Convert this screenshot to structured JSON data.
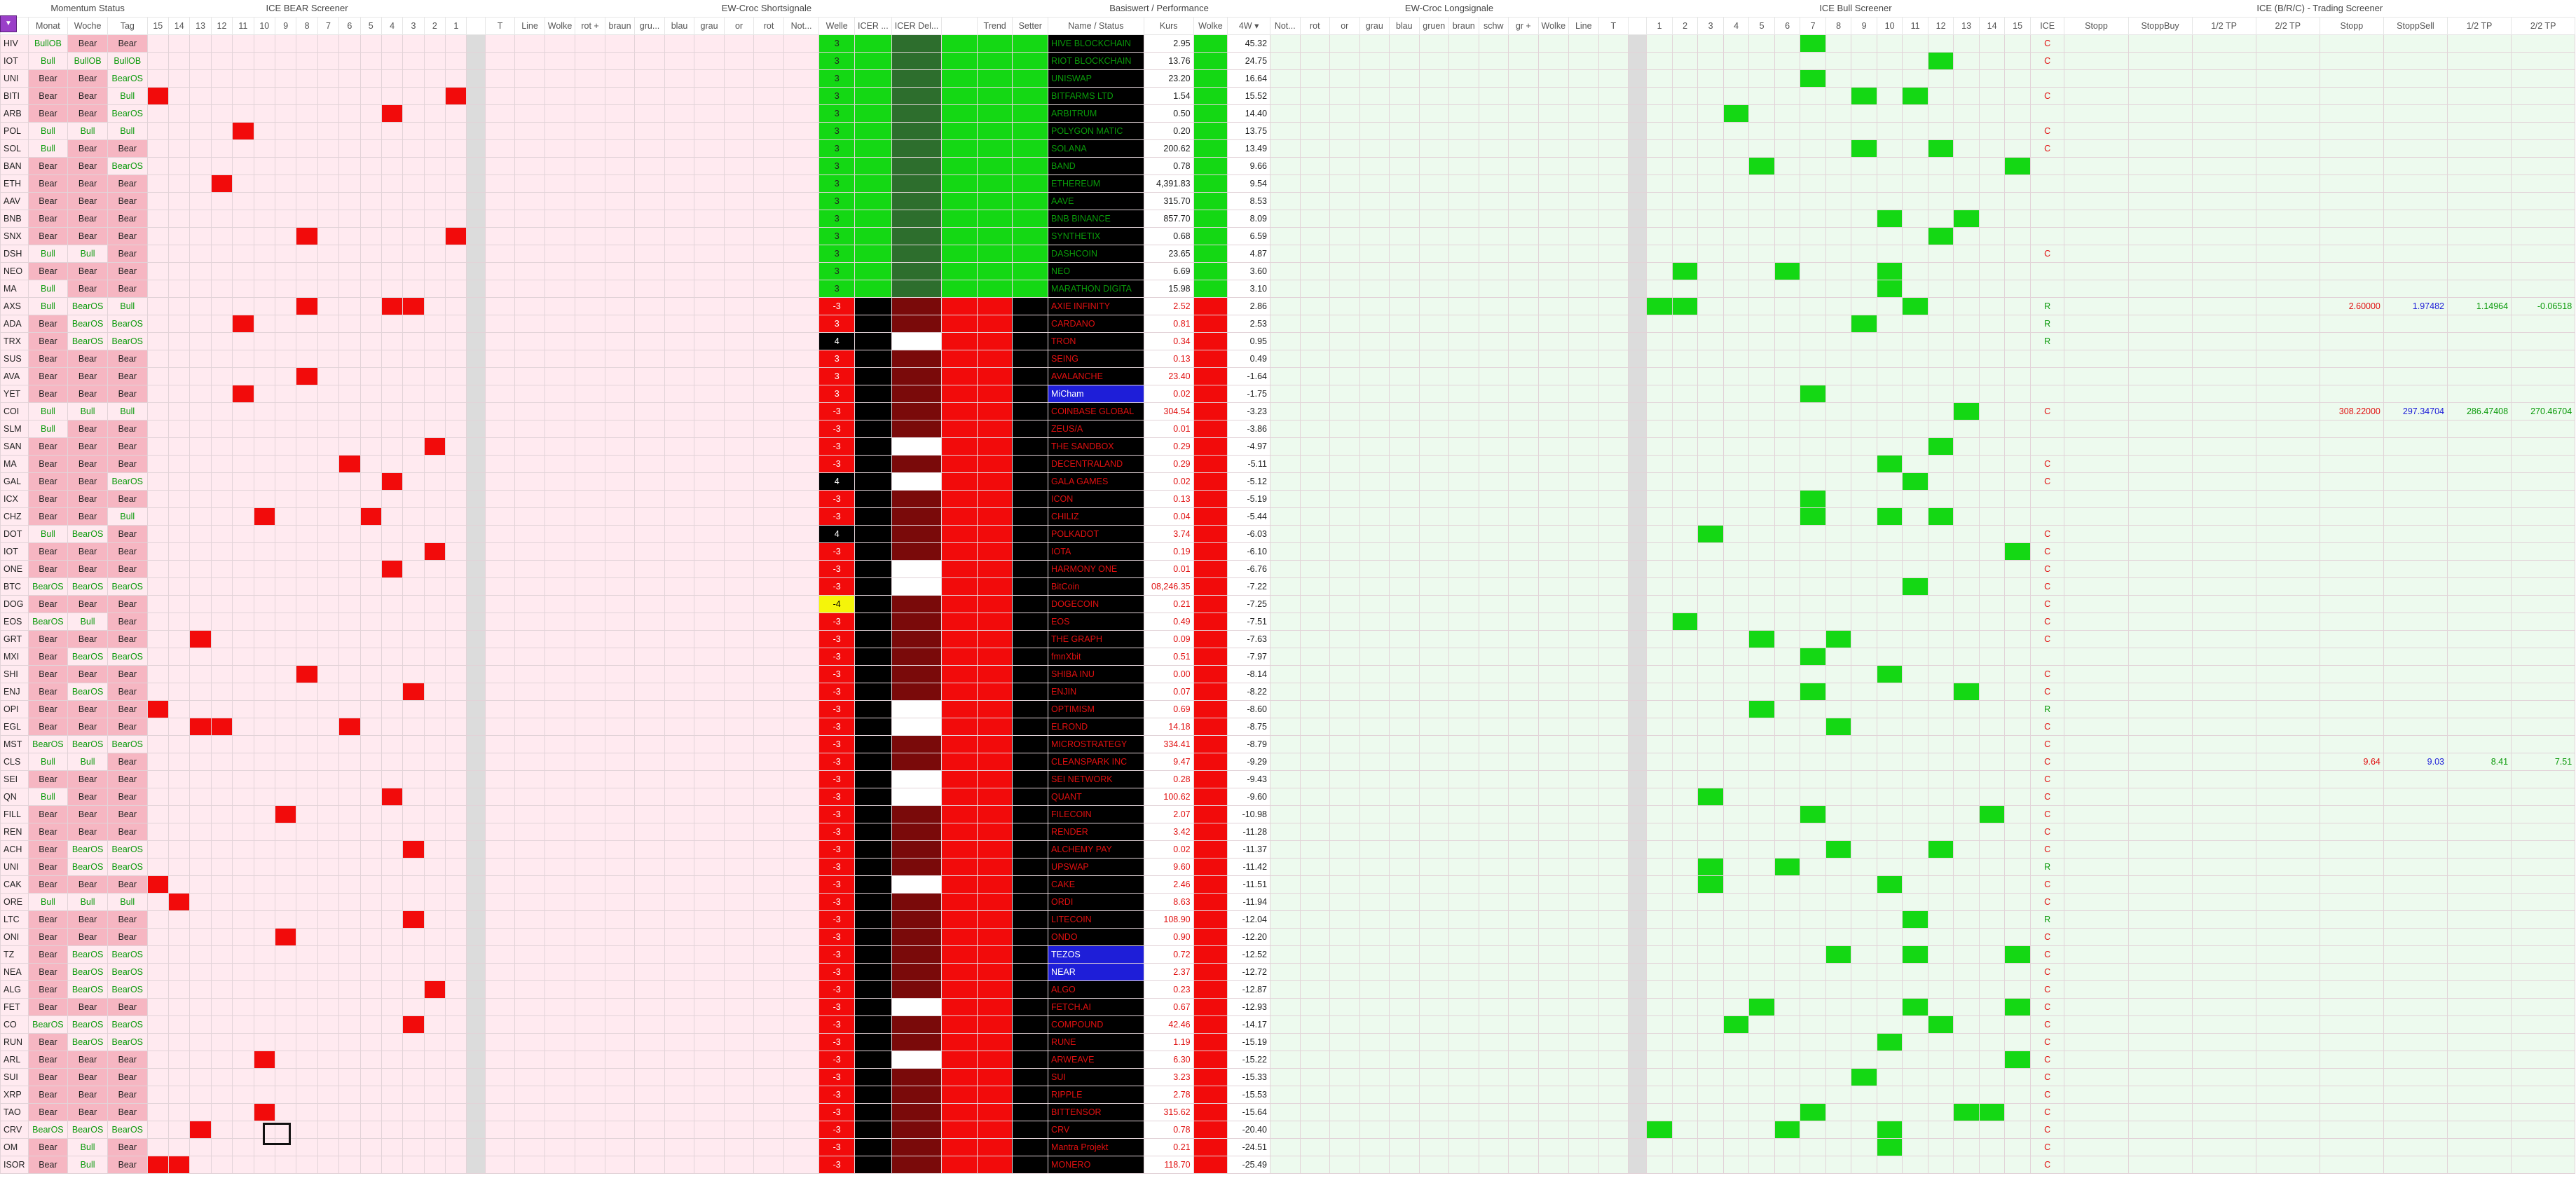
{
  "groups": {
    "momentum": "Momentum Status",
    "icebear": "ICE BEAR Screener",
    "ewshort": "EW-Croc Shortsignale",
    "basis": "Basiswert / Performance",
    "ewlong": "EW-Croc Longsignale",
    "icebull": "ICE Bull Screener",
    "trading": "ICE (B/R/C) - Trading Screener"
  },
  "corner_label": "▼",
  "headers": {
    "momentum": [
      "Monat",
      "Woche",
      "Tag"
    ],
    "icebear": [
      "15",
      "14",
      "13",
      "12",
      "11",
      "10",
      "9",
      "8",
      "7",
      "6",
      "5",
      "4",
      "3",
      "2",
      "1"
    ],
    "ewshort_a": [
      "T",
      "Line",
      "Wolke",
      "rot +",
      "braun",
      "gru...",
      "blau",
      "grau",
      "or",
      "rot"
    ],
    "ewshort_b": [
      "Not...",
      "Welle",
      "ICER ...",
      "ICER Del...",
      "",
      "Trend",
      "Setter"
    ],
    "basis": [
      "Name / Status",
      "Kurs",
      "Wolke",
      "4W ▾"
    ],
    "ewlong": [
      "Not...",
      "rot",
      "or",
      "grau",
      "blau",
      "gruen",
      "braun",
      "schw",
      "gr +",
      "Wolke",
      "Line",
      "T"
    ],
    "icebull": [
      "1",
      "2",
      "3",
      "4",
      "5",
      "6",
      "7",
      "8",
      "9",
      "10",
      "11",
      "12",
      "13",
      "14",
      "15",
      "ICE"
    ],
    "trading": [
      "Stopp",
      "StoppBuy",
      "1/2 TP",
      "2/2 TP",
      "Stopp",
      "StoppSell",
      "1/2 TP",
      "2/2 TP"
    ]
  },
  "rows": [
    {
      "t": "HIV",
      "m": [
        "BullOB",
        "Bear",
        "Bear"
      ],
      "name": "HIVE BLOCKCHAIN",
      "kurs": "2.95",
      "w4": "45.32",
      "welle": "3",
      "ice": "C"
    },
    {
      "t": "IOT",
      "m": [
        "Bull",
        "BullOB",
        "BullOB"
      ],
      "name": "RIOT BLOCKCHAIN",
      "kurs": "13.76",
      "w4": "24.75",
      "welle": "3",
      "ice": "C"
    },
    {
      "t": "UNI",
      "m": [
        "Bear",
        "Bear",
        "BearOS"
      ],
      "name": "UNISWAP",
      "kurs": "23.20",
      "w4": "16.64",
      "welle": "3",
      "ice": ""
    },
    {
      "t": "BITI",
      "m": [
        "Bear",
        "Bear",
        "Bull"
      ],
      "name": "BITFARMS LTD",
      "kurs": "1.54",
      "w4": "15.52",
      "welle": "3",
      "ice": "C"
    },
    {
      "t": "ARB",
      "m": [
        "Bear",
        "Bear",
        "BearOS"
      ],
      "name": "ARBITRUM",
      "kurs": "0.50",
      "w4": "14.40",
      "welle": "3",
      "ice": ""
    },
    {
      "t": "POL",
      "m": [
        "Bull",
        "Bull",
        "Bull"
      ],
      "name": "POLYGON MATIC",
      "kurs": "0.20",
      "w4": "13.75",
      "welle": "3",
      "ice": "C"
    },
    {
      "t": "SOL",
      "m": [
        "Bull",
        "Bear",
        "Bear"
      ],
      "name": "SOLANA",
      "kurs": "200.62",
      "w4": "13.49",
      "welle": "3",
      "ice": "C"
    },
    {
      "t": "BAN",
      "m": [
        "Bear",
        "Bear",
        "BearOS"
      ],
      "name": "BAND",
      "kurs": "0.78",
      "w4": "9.66",
      "welle": "3",
      "ice": ""
    },
    {
      "t": "ETH",
      "m": [
        "Bear",
        "Bear",
        "Bear"
      ],
      "name": "ETHEREUM",
      "kurs": "4,391.83",
      "w4": "9.54",
      "welle": "3",
      "ice": ""
    },
    {
      "t": "AAV",
      "m": [
        "Bear",
        "Bear",
        "Bear"
      ],
      "name": "AAVE",
      "kurs": "315.70",
      "w4": "8.53",
      "welle": "3",
      "ice": ""
    },
    {
      "t": "BNB",
      "m": [
        "Bear",
        "Bear",
        "Bear"
      ],
      "name": "BNB BINANCE",
      "kurs": "857.70",
      "w4": "8.09",
      "welle": "3",
      "ice": ""
    },
    {
      "t": "SNX",
      "m": [
        "Bear",
        "Bear",
        "Bear"
      ],
      "name": "SYNTHETIX",
      "kurs": "0.68",
      "w4": "6.59",
      "welle": "3",
      "ice": ""
    },
    {
      "t": "DSH",
      "m": [
        "Bull",
        "Bull",
        "Bear"
      ],
      "name": "DASHCOIN",
      "kurs": "23.65",
      "w4": "4.87",
      "welle": "3",
      "ice": "C"
    },
    {
      "t": "NEO",
      "m": [
        "Bear",
        "Bear",
        "Bear"
      ],
      "name": "NEO",
      "kurs": "6.69",
      "w4": "3.60",
      "welle": "3",
      "ice": ""
    },
    {
      "t": "MA",
      "m": [
        "Bull",
        "Bear",
        "Bear"
      ],
      "name": "MARATHON DIGITA",
      "kurs": "15.98",
      "w4": "3.10",
      "welle": "3",
      "ice": ""
    },
    {
      "t": "AXS",
      "m": [
        "Bull",
        "BearOS",
        "Bull"
      ],
      "name": "AXIE INFINITY",
      "kurs": "2.52",
      "w4": "2.86",
      "welle": "-3",
      "ice": "R"
    },
    {
      "t": "ADA",
      "m": [
        "Bear",
        "BearOS",
        "BearOS"
      ],
      "name": "CARDANO",
      "kurs": "0.81",
      "w4": "2.53",
      "welle": "3",
      "ice": "R"
    },
    {
      "t": "TRX",
      "m": [
        "Bear",
        "BearOS",
        "BearOS"
      ],
      "name": "TRON",
      "kurs": "0.34",
      "w4": "0.95",
      "welle": "4",
      "ice": "R"
    },
    {
      "t": "SUS",
      "m": [
        "Bear",
        "Bear",
        "Bear"
      ],
      "name": "SEING",
      "kurs": "0.13",
      "w4": "0.49",
      "welle": "3",
      "ice": ""
    },
    {
      "t": "AVA",
      "m": [
        "Bear",
        "Bear",
        "Bear"
      ],
      "name": "AVALANCHE",
      "kurs": "23.40",
      "w4": "-1.64",
      "welle": "3",
      "ice": ""
    },
    {
      "t": "YET",
      "m": [
        "Bear",
        "Bear",
        "Bear"
      ],
      "name": "MiCham",
      "kurs": "0.02",
      "w4": "-1.75",
      "welle": "3",
      "ice": ""
    },
    {
      "t": "COI",
      "m": [
        "Bull",
        "Bull",
        "Bull"
      ],
      "name": "COINBASE GLOBAL",
      "kurs": "304.54",
      "w4": "-3.23",
      "welle": "-3",
      "ice": "C"
    },
    {
      "t": "SLM",
      "m": [
        "Bull",
        "Bear",
        "Bear"
      ],
      "name": "ZEUS/A",
      "kurs": "0.01",
      "w4": "-3.86",
      "welle": "-3",
      "ice": ""
    },
    {
      "t": "SAN",
      "m": [
        "Bear",
        "Bear",
        "Bear"
      ],
      "name": "THE SANDBOX",
      "kurs": "0.29",
      "w4": "-4.97",
      "welle": "-3",
      "ice": ""
    },
    {
      "t": "MA",
      "m": [
        "Bear",
        "Bear",
        "Bear"
      ],
      "name": "DECENTRALAND",
      "kurs": "0.29",
      "w4": "-5.11",
      "welle": "-3",
      "ice": "C"
    },
    {
      "t": "GAL",
      "m": [
        "Bear",
        "Bear",
        "BearOS"
      ],
      "name": "GALA GAMES",
      "kurs": "0.02",
      "w4": "-5.12",
      "welle": "4",
      "ice": "C"
    },
    {
      "t": "ICX",
      "m": [
        "Bear",
        "Bear",
        "Bear"
      ],
      "name": "ICON",
      "kurs": "0.13",
      "w4": "-5.19",
      "welle": "-3",
      "ice": ""
    },
    {
      "t": "CHZ",
      "m": [
        "Bear",
        "Bear",
        "Bull"
      ],
      "name": "CHILIZ",
      "kurs": "0.04",
      "w4": "-5.44",
      "welle": "-3",
      "ice": ""
    },
    {
      "t": "DOT",
      "m": [
        "Bull",
        "BearOS",
        "Bear"
      ],
      "name": "POLKADOT",
      "kurs": "3.74",
      "w4": "-6.03",
      "welle": "4",
      "ice": "C"
    },
    {
      "t": "IOT",
      "m": [
        "Bear",
        "Bear",
        "Bear"
      ],
      "name": "IOTA",
      "kurs": "0.19",
      "w4": "-6.10",
      "welle": "-3",
      "ice": "C"
    },
    {
      "t": "ONE",
      "m": [
        "Bear",
        "Bear",
        "Bear"
      ],
      "name": "HARMONY ONE",
      "kurs": "0.01",
      "w4": "-6.76",
      "welle": "-3",
      "ice": "C"
    },
    {
      "t": "BTC",
      "m": [
        "BearOS",
        "BearOS",
        "BearOS"
      ],
      "name": "BitCoin",
      "kurs": "08,246.35",
      "w4": "-7.22",
      "welle": "-3",
      "ice": "C"
    },
    {
      "t": "DOG",
      "m": [
        "Bear",
        "Bear",
        "Bear"
      ],
      "name": "DOGECOIN",
      "kurs": "0.21",
      "w4": "-7.25",
      "welle": "-4",
      "ice": "C"
    },
    {
      "t": "EOS",
      "m": [
        "BearOS",
        "Bull",
        "Bear"
      ],
      "name": "EOS",
      "kurs": "0.49",
      "w4": "-7.51",
      "welle": "-3",
      "ice": "C"
    },
    {
      "t": "GRT",
      "m": [
        "Bear",
        "Bear",
        "Bear"
      ],
      "name": "THE GRAPH",
      "kurs": "0.09",
      "w4": "-7.63",
      "welle": "-3",
      "ice": "C"
    },
    {
      "t": "MXI",
      "m": [
        "Bear",
        "BearOS",
        "BearOS"
      ],
      "name": "fmnXbit",
      "kurs": "0.51",
      "w4": "-7.97",
      "welle": "-3",
      "ice": ""
    },
    {
      "t": "SHI",
      "m": [
        "Bear",
        "Bear",
        "Bear"
      ],
      "name": "SHIBA INU",
      "kurs": "0.00",
      "w4": "-8.14",
      "welle": "-3",
      "ice": "C"
    },
    {
      "t": "ENJ",
      "m": [
        "Bear",
        "BearOS",
        "Bear"
      ],
      "name": "ENJIN",
      "kurs": "0.07",
      "w4": "-8.22",
      "welle": "-3",
      "ice": "C"
    },
    {
      "t": "OPI",
      "m": [
        "Bear",
        "Bear",
        "Bear"
      ],
      "name": "OPTIMISM",
      "kurs": "0.69",
      "w4": "-8.60",
      "welle": "-3",
      "ice": "R"
    },
    {
      "t": "EGL",
      "m": [
        "Bear",
        "Bear",
        "Bear"
      ],
      "name": "ELROND",
      "kurs": "14.18",
      "w4": "-8.75",
      "welle": "-3",
      "ice": "C"
    },
    {
      "t": "MST",
      "m": [
        "BearOS",
        "BearOS",
        "BearOS"
      ],
      "name": "MICROSTRATEGY",
      "kurs": "334.41",
      "w4": "-8.79",
      "welle": "-3",
      "ice": "C"
    },
    {
      "t": "CLS",
      "m": [
        "Bull",
        "Bull",
        "Bear"
      ],
      "name": "CLEANSPARK INC",
      "kurs": "9.47",
      "w4": "-9.29",
      "welle": "-3",
      "ice": "C"
    },
    {
      "t": "SEI",
      "m": [
        "Bear",
        "Bear",
        "Bear"
      ],
      "name": "SEI NETWORK",
      "kurs": "0.28",
      "w4": "-9.43",
      "welle": "-3",
      "ice": "C"
    },
    {
      "t": "QN",
      "m": [
        "Bull",
        "Bear",
        "Bear"
      ],
      "name": "QUANT",
      "kurs": "100.62",
      "w4": "-9.60",
      "welle": "-3",
      "ice": "C"
    },
    {
      "t": "FILL",
      "m": [
        "Bear",
        "Bear",
        "Bear"
      ],
      "name": "FILECOIN",
      "kurs": "2.07",
      "w4": "-10.98",
      "welle": "-3",
      "ice": "C"
    },
    {
      "t": "REN",
      "m": [
        "Bear",
        "Bear",
        "Bear"
      ],
      "name": "RENDER",
      "kurs": "3.42",
      "w4": "-11.28",
      "welle": "-3",
      "ice": "C"
    },
    {
      "t": "ACH",
      "m": [
        "Bear",
        "BearOS",
        "BearOS"
      ],
      "name": "ALCHEMY PAY",
      "kurs": "0.02",
      "w4": "-11.37",
      "welle": "-3",
      "ice": "C"
    },
    {
      "t": "UNI",
      "m": [
        "Bear",
        "BearOS",
        "BearOS"
      ],
      "name": "UPSWAP",
      "kurs": "9.60",
      "w4": "-11.42",
      "welle": "-3",
      "ice": "R"
    },
    {
      "t": "CAK",
      "m": [
        "Bear",
        "Bear",
        "Bear"
      ],
      "name": "CAKE",
      "kurs": "2.46",
      "w4": "-11.51",
      "welle": "-3",
      "ice": "C"
    },
    {
      "t": "ORE",
      "m": [
        "Bull",
        "Bull",
        "Bull"
      ],
      "name": "ORDI",
      "kurs": "8.63",
      "w4": "-11.94",
      "welle": "-3",
      "ice": "C"
    },
    {
      "t": "LTC",
      "m": [
        "Bear",
        "Bear",
        "Bear"
      ],
      "name": "LITECOIN",
      "kurs": "108.90",
      "w4": "-12.04",
      "welle": "-3",
      "ice": "R"
    },
    {
      "t": "ONI",
      "m": [
        "Bear",
        "Bear",
        "Bear"
      ],
      "name": "ONDO",
      "kurs": "0.90",
      "w4": "-12.20",
      "welle": "-3",
      "ice": "C"
    },
    {
      "t": "TZ",
      "m": [
        "Bear",
        "BearOS",
        "BearOS"
      ],
      "name": "TEZOS",
      "kurs": "0.72",
      "w4": "-12.52",
      "welle": "-3",
      "ice": "C"
    },
    {
      "t": "NEA",
      "m": [
        "Bear",
        "BearOS",
        "BearOS"
      ],
      "name": "NEAR",
      "kurs": "2.37",
      "w4": "-12.72",
      "welle": "-3",
      "ice": "C"
    },
    {
      "t": "ALG",
      "m": [
        "Bear",
        "BearOS",
        "BearOS"
      ],
      "name": "ALGO",
      "kurs": "0.23",
      "w4": "-12.87",
      "welle": "-3",
      "ice": "C"
    },
    {
      "t": "FET",
      "m": [
        "Bear",
        "Bear",
        "Bear"
      ],
      "name": "FETCH.AI",
      "kurs": "0.67",
      "w4": "-12.93",
      "welle": "-3",
      "ice": "C"
    },
    {
      "t": "CO",
      "m": [
        "BearOS",
        "BearOS",
        "BearOS"
      ],
      "name": "COMPOUND",
      "kurs": "42.46",
      "w4": "-14.17",
      "welle": "-3",
      "ice": "C"
    },
    {
      "t": "RUN",
      "m": [
        "Bear",
        "BearOS",
        "BearOS"
      ],
      "name": "RUNE",
      "kurs": "1.19",
      "w4": "-15.19",
      "welle": "-3",
      "ice": "C"
    },
    {
      "t": "ARL",
      "m": [
        "Bear",
        "Bear",
        "Bear"
      ],
      "name": "ARWEAVE",
      "kurs": "6.30",
      "w4": "-15.22",
      "welle": "-3",
      "ice": "C"
    },
    {
      "t": "SUI",
      "m": [
        "Bear",
        "Bear",
        "Bear"
      ],
      "name": "SUI",
      "kurs": "3.23",
      "w4": "-15.33",
      "welle": "-3",
      "ice": "C"
    },
    {
      "t": "XRP",
      "m": [
        "Bear",
        "Bear",
        "Bear"
      ],
      "name": "RIPPLE",
      "kurs": "2.78",
      "w4": "-15.53",
      "welle": "-3",
      "ice": "C"
    },
    {
      "t": "TAO",
      "m": [
        "Bear",
        "Bear",
        "Bear"
      ],
      "name": "BITTENSOR",
      "kurs": "315.62",
      "w4": "-15.64",
      "welle": "-3",
      "ice": "C"
    },
    {
      "t": "CRV",
      "m": [
        "BearOS",
        "BearOS",
        "BearOS"
      ],
      "name": "CRV",
      "kurs": "0.78",
      "w4": "-20.40",
      "welle": "-3",
      "ice": "C"
    },
    {
      "t": "OM",
      "m": [
        "Bear",
        "Bull",
        "Bear"
      ],
      "name": "Mantra Projekt",
      "kurs": "0.21",
      "w4": "-24.51",
      "welle": "-3",
      "ice": "C"
    },
    {
      "t": "ISOR",
      "m": [
        "Bear",
        "Bull",
        "Bear"
      ],
      "name": "MONERO",
      "kurs": "118.70",
      "w4": "-25.49",
      "welle": "-3",
      "ice": "C"
    }
  ],
  "trading_values": [
    {
      "row": 15,
      "buy": [
        "",
        "",
        "",
        ""
      ],
      "sell": [
        "2.60000",
        "1.97482",
        "1.14964",
        "-0.06518"
      ]
    },
    {
      "row": 21,
      "buy": [
        "",
        "",
        "",
        ""
      ],
      "sell": [
        "308.22000",
        "297.34704",
        "286.47408",
        "270.46704"
      ]
    },
    {
      "row": 41,
      "buy": [
        "",
        "",
        "",
        ""
      ],
      "sell": [
        "9.64",
        "9.03",
        "8.41",
        "7.51"
      ]
    }
  ]
}
